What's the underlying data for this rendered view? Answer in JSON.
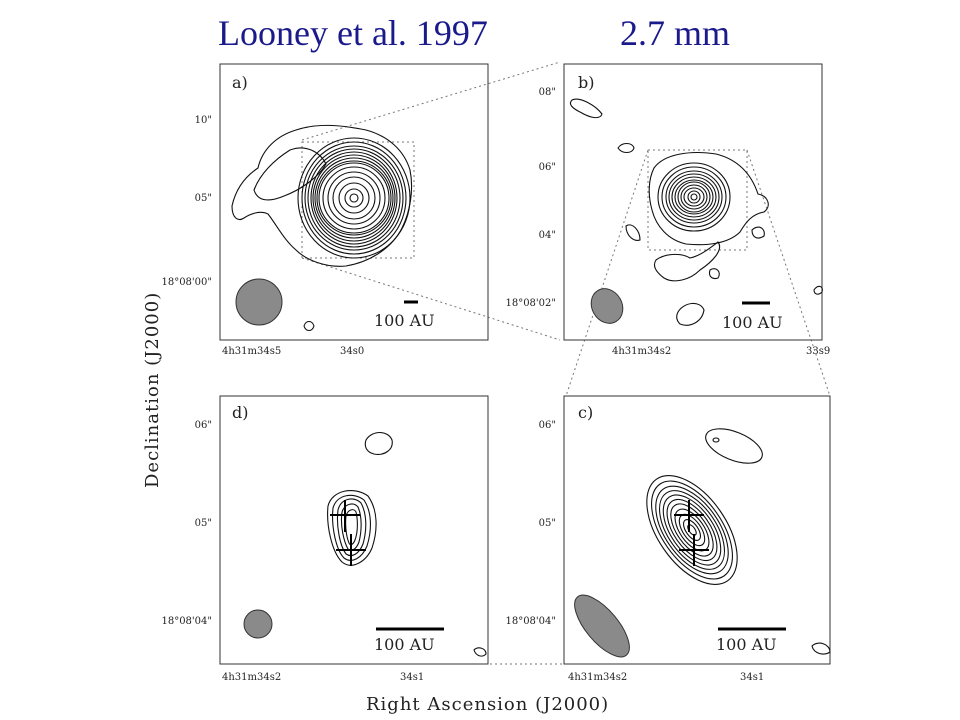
{
  "title": {
    "left": "Looney et al. 1997",
    "right": "2.7 mm"
  },
  "axes": {
    "ylabel": "Declination (J2000)",
    "xlabel": "Right Ascension (J2000)"
  },
  "panels": {
    "a": {
      "label": "a)",
      "scale": "100 AU",
      "dec_ticks": [
        "10\"",
        "05\"",
        "18°08'00\""
      ],
      "ra_ticks": [
        "4h31m34s5",
        "34s0"
      ]
    },
    "b": {
      "label": "b)",
      "scale": "100 AU",
      "dec_ticks": [
        "08\"",
        "06\"",
        "04\"",
        "18°08'02\""
      ],
      "ra_ticks": [
        "4h31m34s2",
        "33s9"
      ]
    },
    "c": {
      "label": "c)",
      "scale": "100 AU",
      "dec_ticks": [
        "06\"",
        "05\"",
        "18°08'04\""
      ],
      "ra_ticks": [
        "4h31m34s2",
        "34s1"
      ]
    },
    "d": {
      "label": "d)",
      "scale": "100 AU",
      "dec_ticks": [
        "06\"",
        "05\"",
        "18°08'04\""
      ],
      "ra_ticks": [
        "4h31m34s2",
        "34s1"
      ]
    }
  }
}
